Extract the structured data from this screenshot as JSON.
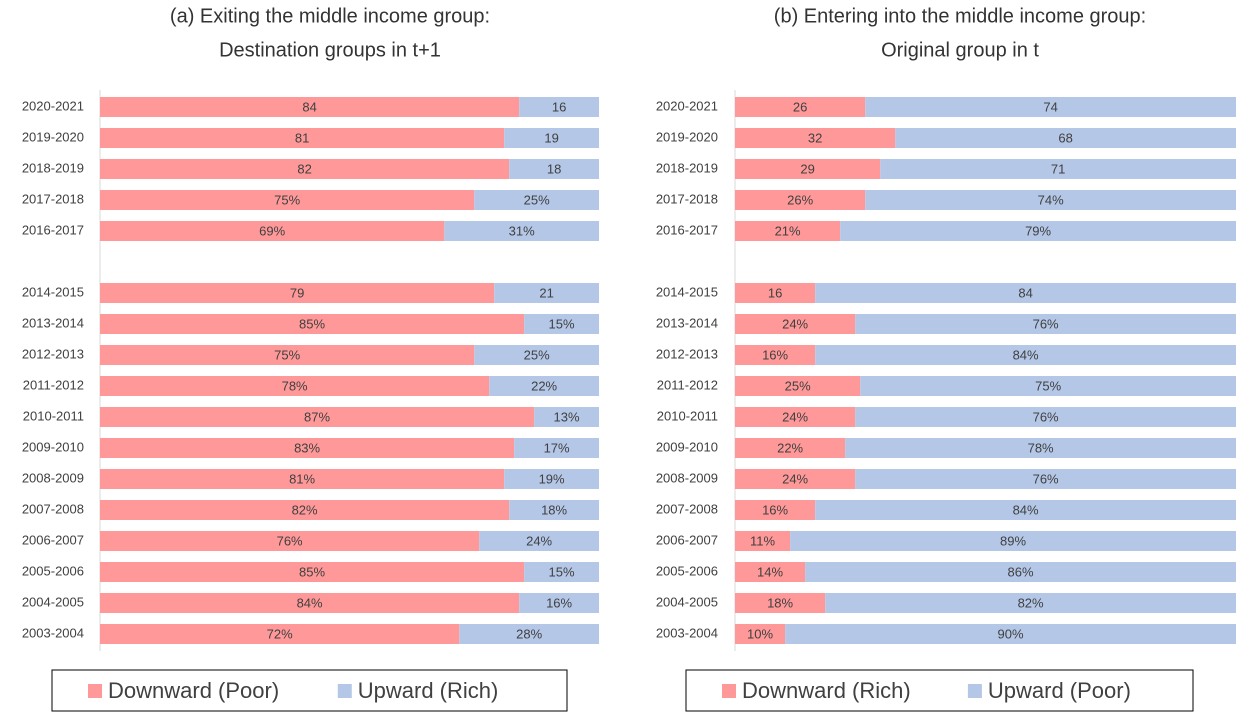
{
  "chart_data": [
    {
      "type": "stacked-bar-horizontal",
      "title": "(a) Exiting the middle income group:",
      "subtitle": "Destination groups in t+1",
      "categories": [
        "2020-2021",
        "2019-2020",
        "2018-2019",
        "2017-2018",
        "2016-2017",
        null,
        "2014-2015",
        "2013-2014",
        "2012-2013",
        "2011-2012",
        "2010-2011",
        "2009-2010",
        "2008-2009",
        "2007-2008",
        "2006-2007",
        "2005-2006",
        "2004-2005",
        "2003-2004"
      ],
      "series": [
        {
          "name": "Downward (Poor)",
          "color": "#ff9999",
          "values": [
            84,
            81,
            82,
            75,
            69,
            null,
            79,
            85,
            75,
            78,
            87,
            83,
            81,
            82,
            76,
            85,
            84,
            72
          ],
          "value_labels": [
            "84",
            "81",
            "82",
            "75%",
            "69%",
            null,
            "79",
            "85%",
            "75%",
            "78%",
            "87%",
            "83%",
            "81%",
            "82%",
            "76%",
            "85%",
            "84%",
            "72%"
          ]
        },
        {
          "name": "Upward (Rich)",
          "color": "#b4c7e7",
          "values": [
            16,
            19,
            18,
            25,
            31,
            null,
            21,
            15,
            25,
            22,
            13,
            17,
            19,
            18,
            24,
            15,
            16,
            28
          ],
          "value_labels": [
            "16",
            "19",
            "18",
            "25%",
            "31%",
            null,
            "21",
            "15%",
            "25%",
            "22%",
            "13%",
            "17%",
            "19%",
            "18%",
            "24%",
            "15%",
            "16%",
            "28%"
          ]
        }
      ]
    },
    {
      "type": "stacked-bar-horizontal",
      "title": "(b) Entering into the middle income group:",
      "subtitle": "Original group in t",
      "categories": [
        "2020-2021",
        "2019-2020",
        "2018-2019",
        "2017-2018",
        "2016-2017",
        null,
        "2014-2015",
        "2013-2014",
        "2012-2013",
        "2011-2012",
        "2010-2011",
        "2009-2010",
        "2008-2009",
        "2007-2008",
        "2006-2007",
        "2005-2006",
        "2004-2005",
        "2003-2004"
      ],
      "series": [
        {
          "name": "Downward (Rich)",
          "color": "#ff9999",
          "values": [
            26,
            32,
            29,
            26,
            21,
            null,
            16,
            24,
            16,
            25,
            24,
            22,
            24,
            16,
            11,
            14,
            18,
            10
          ],
          "value_labels": [
            "26",
            "32",
            "29",
            "26%",
            "21%",
            null,
            "16",
            "24%",
            "16%",
            "25%",
            "24%",
            "22%",
            "24%",
            "16%",
            "11%",
            "14%",
            "18%",
            "10%"
          ]
        },
        {
          "name": "Upward (Poor)",
          "color": "#b4c7e7",
          "values": [
            74,
            68,
            71,
            74,
            79,
            null,
            84,
            76,
            84,
            75,
            76,
            78,
            76,
            84,
            89,
            86,
            82,
            90
          ],
          "value_labels": [
            "74",
            "68",
            "71",
            "74%",
            "79%",
            null,
            "84",
            "76%",
            "84%",
            "75%",
            "76%",
            "78%",
            "76%",
            "84%",
            "89%",
            "86%",
            "82%",
            "90%"
          ]
        }
      ]
    }
  ]
}
